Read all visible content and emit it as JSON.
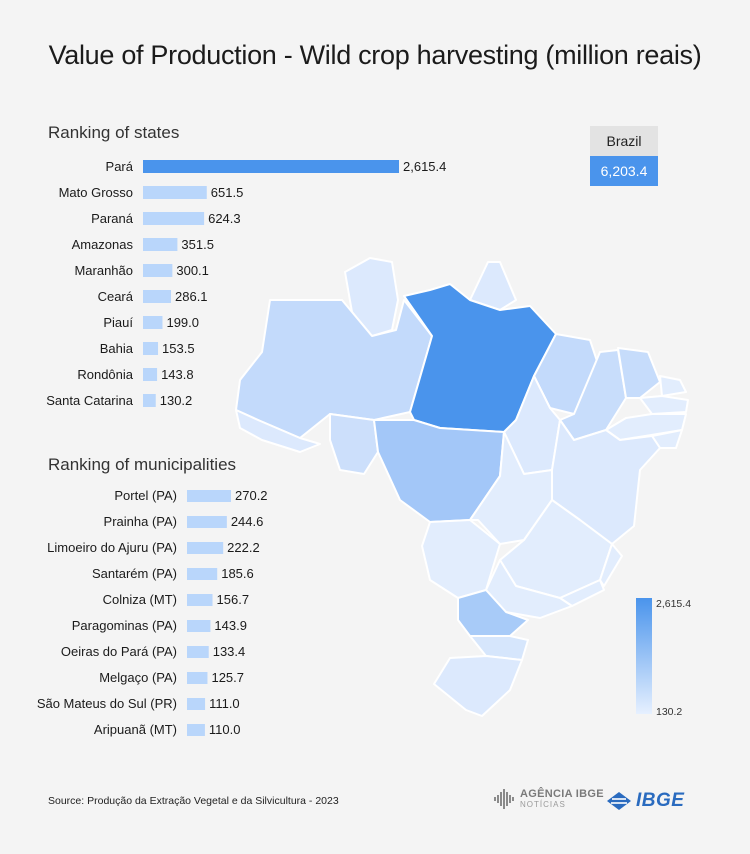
{
  "title": "Value of Production - Wild crop harvesting (million reais)",
  "states_heading": "Ranking of states",
  "municipalities_heading": "Ranking of municipalities",
  "brazil": {
    "label": "Brazil",
    "value": "6,203.4"
  },
  "legend": {
    "max_label": "2,615.4",
    "min_label": "130.2",
    "max_color": "#4a94ec",
    "min_color": "#e6f0ff"
  },
  "source": "Source: Produção da Extração Vegetal e da Silvicultura - 2023",
  "logos": {
    "agencia_line1": "AGÊNCIA IBGE",
    "agencia_line2": "NOTÍCIAS",
    "ibge": "IBGE"
  },
  "colors": {
    "bar_strong": "#4a94ec",
    "bar_light": "#b9d6fb"
  },
  "chart_data": [
    {
      "type": "bar",
      "orientation": "horizontal",
      "title": "Ranking of states",
      "categories": [
        "Pará",
        "Mato Grosso",
        "Paraná",
        "Amazonas",
        "Maranhão",
        "Ceará",
        "Piauí",
        "Bahia",
        "Rondônia",
        "Santa Catarina"
      ],
      "values": [
        2615.4,
        651.5,
        624.3,
        351.5,
        300.1,
        286.1,
        199.0,
        153.5,
        143.8,
        130.2
      ],
      "value_labels": [
        "2,615.4",
        "651.5",
        "624.3",
        "351.5",
        "300.1",
        "286.1",
        "199.0",
        "153.5",
        "143.8",
        "130.2"
      ]
    },
    {
      "type": "bar",
      "orientation": "horizontal",
      "title": "Ranking of municipalities",
      "categories": [
        "Portel (PA)",
        "Prainha (PA)",
        "Limoeiro do Ajuru (PA)",
        "Santarém (PA)",
        "Colniza (MT)",
        "Paragominas (PA)",
        "Oeiras do Pará (PA)",
        "Melgaço (PA)",
        "São Mateus do Sul (PR)",
        "Aripuanã (MT)"
      ],
      "values": [
        270.2,
        244.6,
        222.2,
        185.6,
        156.7,
        143.9,
        133.4,
        125.7,
        111.0,
        110.0
      ],
      "value_labels": [
        "270.2",
        "244.6",
        "222.2",
        "185.6",
        "156.7",
        "143.9",
        "133.4",
        "125.7",
        "111.0",
        "110.0"
      ]
    }
  ]
}
